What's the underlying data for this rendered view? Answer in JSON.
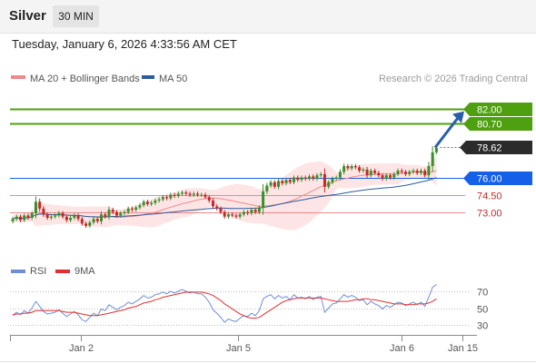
{
  "header": {
    "symbol": "Silver",
    "timeframe": "30 MIN",
    "datetime": "Tuesday, January 6, 2026 4:33:56 AM CET"
  },
  "legend": {
    "ma20": "MA 20 + Bollinger Bands",
    "ma50": "MA 50",
    "credit": "Research © 2026 Trading Central",
    "rsi": "RSI",
    "ma9": "9MA"
  },
  "colors": {
    "up": "#3a8f2a",
    "down": "#c62828",
    "ma20": "#f08a8a",
    "ma50": "#2d5b9e",
    "band_fill": "#fde5e5",
    "target": "#4fa010",
    "pivot": "#1560e8",
    "support": "#e98a8a",
    "support_text": "#c62828",
    "last": "#2b2b2b",
    "rsi": "#6e8fd6",
    "rsi_ma": "#e23030",
    "arrow": "#2b5ea8"
  },
  "chart_data": {
    "type": "candlestick",
    "instrument": "Silver",
    "interval": "30 MIN",
    "ylim": [
      71.0,
      83.0
    ],
    "x_ticks": [
      "Jan 2",
      "Jan 5",
      "Jan 6",
      "Jan 15"
    ],
    "levels": [
      {
        "role": "target",
        "value": 82.0,
        "label": "82.00"
      },
      {
        "role": "target",
        "value": 80.7,
        "label": "80.70"
      },
      {
        "role": "last",
        "value": 78.62,
        "label": "78.62"
      },
      {
        "role": "pivot",
        "value": 76.0,
        "label": "76.00"
      },
      {
        "role": "support",
        "value": 74.5,
        "label": "74.50"
      },
      {
        "role": "support",
        "value": 73.0,
        "label": "73.00"
      }
    ],
    "arrow": {
      "from": 78.62,
      "to": 82.0
    },
    "closes": [
      72.4,
      72.6,
      72.3,
      72.7,
      72.5,
      72.9,
      73.9,
      73.3,
      72.8,
      72.5,
      72.6,
      72.7,
      72.9,
      72.6,
      72.3,
      72.5,
      72.7,
      72.4,
      72.0,
      71.8,
      72.1,
      72.4,
      72.2,
      72.8,
      72.6,
      73.2,
      73.0,
      72.7,
      72.9,
      73.0,
      73.3,
      73.2,
      73.4,
      73.6,
      73.9,
      73.7,
      73.8,
      74.0,
      74.1,
      74.3,
      74.2,
      74.5,
      74.4,
      74.6,
      74.7,
      74.6,
      74.5,
      74.6,
      74.5,
      74.5,
      74.3,
      74.0,
      73.5,
      73.3,
      73.0,
      72.6,
      72.8,
      72.7,
      72.6,
      72.8,
      73.0,
      72.9,
      73.2,
      73.0,
      73.4,
      74.8,
      75.3,
      75.6,
      75.2,
      75.7,
      75.5,
      75.8,
      75.6,
      76.0,
      75.8,
      76.0,
      75.9,
      76.1,
      75.9,
      76.2,
      76.3,
      75.2,
      75.6,
      75.9,
      76.0,
      76.5,
      77.0,
      76.8,
      77.0,
      76.9,
      76.6,
      76.7,
      76.2,
      76.6,
      76.4,
      76.2,
      75.9,
      76.2,
      76.0,
      76.3,
      76.6,
      76.5,
      76.3,
      76.5,
      76.6,
      76.4,
      76.6,
      76.2,
      77.0,
      78.2,
      78.6
    ],
    "rsi": {
      "levels": [
        70,
        50,
        30
      ],
      "values": [
        41,
        45,
        42,
        47,
        44,
        50,
        58,
        52,
        46,
        43,
        44,
        45,
        48,
        44,
        40,
        43,
        46,
        42,
        36,
        34,
        39,
        44,
        41,
        49,
        47,
        54,
        51,
        48,
        51,
        53,
        57,
        55,
        58,
        61,
        65,
        62,
        63,
        66,
        67,
        69,
        67,
        70,
        68,
        70,
        72,
        70,
        68,
        69,
        67,
        67,
        63,
        57,
        48,
        44,
        39,
        33,
        37,
        35,
        34,
        38,
        41,
        40,
        44,
        41,
        47,
        61,
        64,
        66,
        61,
        65,
        62,
        64,
        60,
        66,
        62,
        63,
        61,
        64,
        60,
        63,
        64,
        45,
        50,
        55,
        56,
        61,
        66,
        63,
        65,
        63,
        59,
        60,
        54,
        58,
        55,
        53,
        49,
        53,
        51,
        54,
        57,
        56,
        53,
        55,
        57,
        54,
        57,
        52,
        63,
        75,
        78
      ],
      "ma9": [
        42,
        43,
        43,
        44,
        44,
        45,
        47,
        47,
        47,
        47,
        47,
        47,
        47,
        46,
        45,
        45,
        45,
        44,
        43,
        42,
        41,
        41,
        41,
        42,
        43,
        44,
        45,
        46,
        47,
        48,
        50,
        51,
        52,
        54,
        56,
        57,
        58,
        60,
        61,
        63,
        64,
        65,
        66,
        67,
        68,
        69,
        69,
        69,
        69,
        69,
        68,
        67,
        65,
        62,
        59,
        55,
        52,
        49,
        46,
        43,
        41,
        39,
        38,
        38,
        39,
        42,
        45,
        48,
        51,
        54,
        57,
        59,
        60,
        61,
        62,
        62,
        62,
        62,
        62,
        62,
        62,
        61,
        60,
        59,
        58,
        58,
        58,
        58,
        59,
        60,
        60,
        61,
        61,
        60,
        60,
        59,
        58,
        57,
        56,
        55,
        55,
        55,
        54,
        54,
        54,
        55,
        55,
        55,
        56,
        58,
        61
      ]
    }
  }
}
